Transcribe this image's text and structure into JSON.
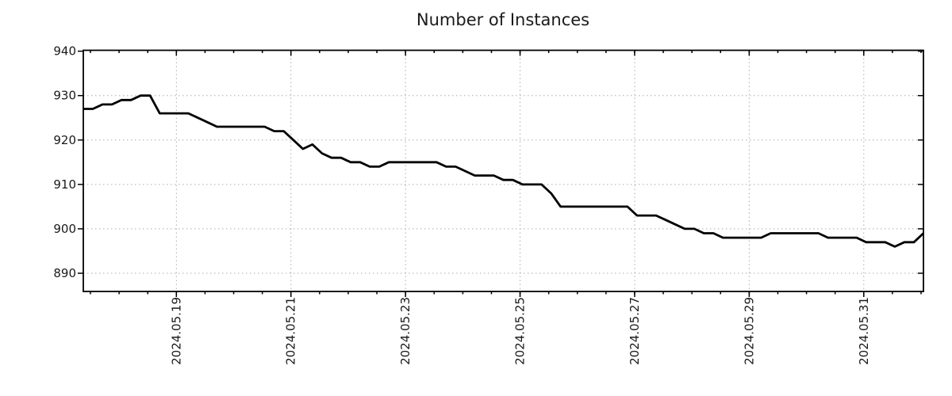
{
  "title": "Number of Instances",
  "chart_data": {
    "type": "line",
    "title": "Number of Instances",
    "series": [
      {
        "name": "instances",
        "x_start": "2024-05-17 09:00",
        "x_step_hours": 4,
        "values": [
          927,
          927,
          928,
          928,
          929,
          929,
          930,
          930,
          926,
          926,
          926,
          926,
          925,
          924,
          923,
          923,
          923,
          923,
          923,
          923,
          922,
          922,
          920,
          918,
          919,
          917,
          916,
          916,
          915,
          915,
          914,
          914,
          915,
          915,
          915,
          915,
          915,
          915,
          914,
          914,
          913,
          912,
          912,
          912,
          911,
          911,
          910,
          910,
          910,
          908,
          905,
          905,
          905,
          905,
          905,
          905,
          905,
          905,
          903,
          903,
          903,
          902,
          901,
          900,
          900,
          899,
          899,
          898,
          898,
          898,
          898,
          898,
          899,
          899,
          899,
          899,
          899,
          899,
          898,
          898,
          898,
          898,
          897,
          897,
          897,
          896,
          897,
          897,
          899
        ]
      }
    ],
    "x_tick_labels": [
      "2024.05.19",
      "2024.05.21",
      "2024.05.23",
      "2024.05.25",
      "2024.05.27",
      "2024.05.29",
      "2024.05.31"
    ],
    "x_major_tick_interval_days": 2,
    "x_minor_tick_interval_hours": 12,
    "y_tick_labels": [
      "940",
      "930",
      "920",
      "910",
      "900",
      "890"
    ],
    "y_tick_values": [
      940,
      930,
      920,
      910,
      900,
      890
    ],
    "ylim": [
      885.9,
      940.2
    ],
    "xlabel": "",
    "ylabel": "",
    "grid": "dotted",
    "legend": "none",
    "colors": {
      "line": "#000000",
      "grid": "#ababab",
      "frame": "#000000",
      "text": "#1a1a1a",
      "background": "#ffffff"
    }
  }
}
